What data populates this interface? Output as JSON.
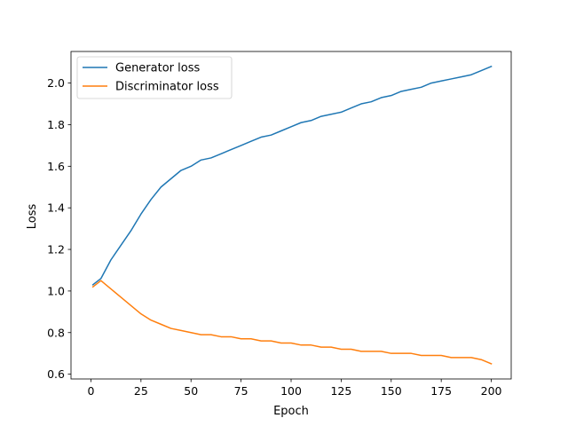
{
  "chart_data": {
    "type": "line",
    "title": "",
    "xlabel": "Epoch",
    "ylabel": "Loss",
    "xlim": [
      -9.95,
      209.95
    ],
    "ylim": [
      0.577,
      2.152
    ],
    "xticks": [
      0,
      25,
      50,
      75,
      100,
      125,
      150,
      175,
      200
    ],
    "yticks": [
      0.6,
      0.8,
      1.0,
      1.2,
      1.4,
      1.6,
      1.8,
      2.0
    ],
    "grid": false,
    "legend_position": "top-left",
    "x": [
      1,
      5,
      10,
      15,
      20,
      25,
      30,
      35,
      40,
      45,
      50,
      55,
      60,
      65,
      70,
      75,
      80,
      85,
      90,
      95,
      100,
      105,
      110,
      115,
      120,
      125,
      130,
      135,
      140,
      145,
      150,
      155,
      160,
      165,
      170,
      175,
      180,
      185,
      190,
      195,
      200
    ],
    "series": [
      {
        "name": "Generator loss",
        "color": "#1f77b4",
        "values": [
          1.03,
          1.06,
          1.15,
          1.22,
          1.29,
          1.37,
          1.44,
          1.5,
          1.54,
          1.58,
          1.6,
          1.63,
          1.64,
          1.66,
          1.68,
          1.7,
          1.72,
          1.74,
          1.75,
          1.77,
          1.79,
          1.81,
          1.82,
          1.84,
          1.85,
          1.86,
          1.88,
          1.9,
          1.91,
          1.93,
          1.94,
          1.96,
          1.97,
          1.98,
          2.0,
          2.01,
          2.02,
          2.03,
          2.04,
          2.06,
          2.08
        ]
      },
      {
        "name": "Discriminator loss",
        "color": "#ff7f0e",
        "values": [
          1.02,
          1.05,
          1.01,
          0.97,
          0.93,
          0.89,
          0.86,
          0.84,
          0.82,
          0.81,
          0.8,
          0.79,
          0.79,
          0.78,
          0.78,
          0.77,
          0.77,
          0.76,
          0.76,
          0.75,
          0.75,
          0.74,
          0.74,
          0.73,
          0.73,
          0.72,
          0.72,
          0.71,
          0.71,
          0.71,
          0.7,
          0.7,
          0.7,
          0.69,
          0.69,
          0.69,
          0.68,
          0.68,
          0.68,
          0.67,
          0.65
        ]
      }
    ]
  }
}
